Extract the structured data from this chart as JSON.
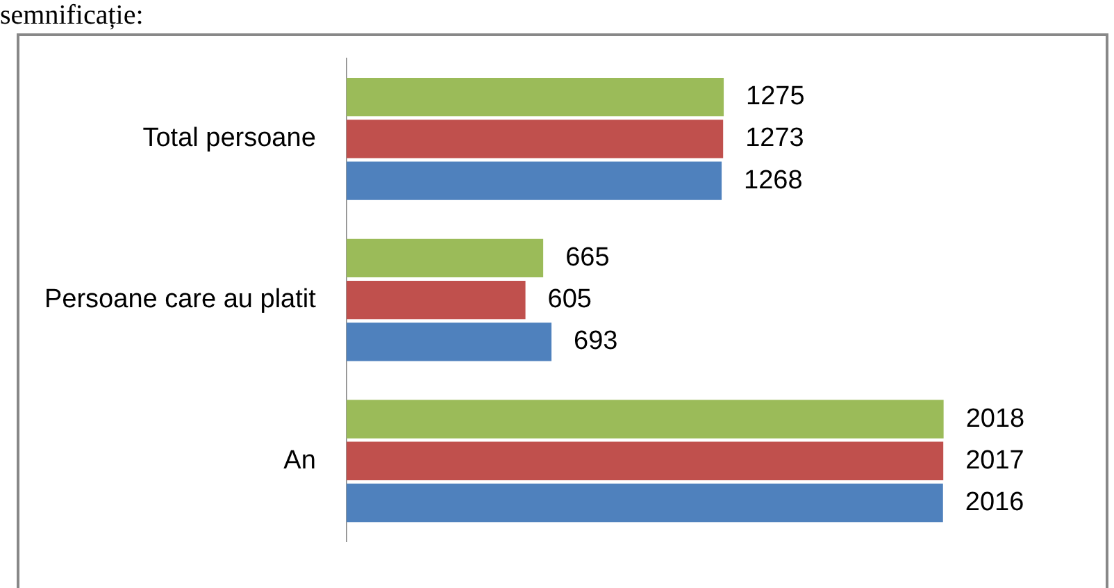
{
  "chart_data": {
    "type": "bar",
    "orientation": "horizontal",
    "categories": [
      "Total persoane",
      "Persoane care au platit",
      "An"
    ],
    "series": [
      {
        "color": "#9bbb59",
        "values": [
          1275,
          665,
          2018
        ]
      },
      {
        "color": "#c0504d",
        "values": [
          1273,
          605,
          2017
        ]
      },
      {
        "color": "#4f81bd",
        "values": [
          1268,
          693,
          2016
        ]
      }
    ],
    "data_labels": true,
    "grid": false,
    "legend": false,
    "annotations": [
      "semnificație:"
    ]
  }
}
